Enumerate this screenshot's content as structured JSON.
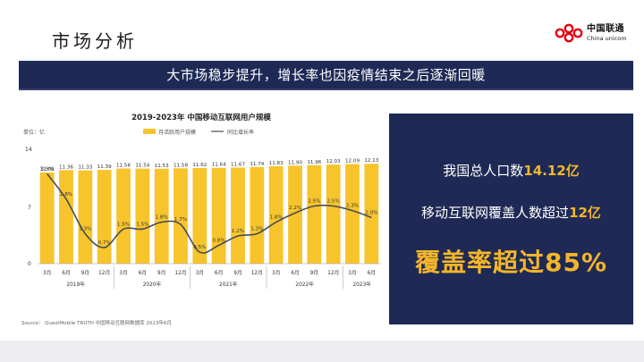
{
  "slide": {
    "title": "市场分析",
    "banner": "大市场稳步提升，增长率也因疫情结束之后逐渐回暖"
  },
  "logo": {
    "cn": "中国联通",
    "en": "China unicom"
  },
  "info": {
    "line1_prefix": "我国总人口数",
    "line1_value": "14.12亿",
    "line2_prefix": "移动互联网覆盖人数超过",
    "line2_value": "12亿",
    "big": "覆盖率超过85%"
  },
  "colors": {
    "navy": "#1e2a55",
    "gold": "#f5b52a",
    "bar": "#f7c42c",
    "line": "#474d57"
  },
  "chart_data": {
    "type": "bar",
    "title": "2019-2023年 中国移动互联网用户规模",
    "unit_label": "单位：亿",
    "legend": [
      "月活跃用户规模",
      "同比增长率"
    ],
    "categories": [
      "3月",
      "6月",
      "9月",
      "12月",
      "3月",
      "6月",
      "9月",
      "12月",
      "3月",
      "6月",
      "9月",
      "12月",
      "3月",
      "6月",
      "9月",
      "12月",
      "3月",
      "6月"
    ],
    "years": [
      {
        "label": "2019年",
        "span": [
          0,
          3
        ]
      },
      {
        "label": "2020年",
        "span": [
          4,
          7
        ]
      },
      {
        "label": "2021年",
        "span": [
          8,
          11
        ]
      },
      {
        "label": "2022年",
        "span": [
          12,
          15
        ]
      },
      {
        "label": "2023年",
        "span": [
          16,
          17
        ]
      }
    ],
    "series": [
      {
        "name": "月活跃用户规模",
        "values": [
          11.08,
          11.36,
          11.33,
          11.39,
          11.56,
          11.54,
          11.53,
          11.58,
          11.62,
          11.64,
          11.67,
          11.74,
          11.83,
          11.9,
          11.96,
          12.03,
          12.09,
          12.13
        ]
      },
      {
        "name": "同比增长率",
        "values": [
          3.9,
          2.8,
          1.3,
          0.7,
          1.5,
          1.5,
          1.8,
          1.7,
          0.5,
          0.8,
          1.2,
          1.3,
          1.8,
          2.2,
          2.5,
          2.5,
          2.3,
          2.0
        ]
      }
    ],
    "bar_labels": [
      "11.08",
      "11.36",
      "11.33",
      "11.39",
      "11.56",
      "11.54",
      "11.53",
      "11.58",
      "11.62",
      "11.64",
      "11.67",
      "11.74",
      "11.83",
      "11.90",
      "11.96",
      "12.03",
      "12.09",
      "12.13"
    ],
    "rate_labels": [
      "3.9%",
      "2.8%",
      "1.3%",
      "0.7%",
      "1.5%",
      "1.5%",
      "1.8%",
      "1.7%",
      "0.5%",
      "0.8%",
      "1.2%",
      "1.3%",
      "1.8%",
      "2.2%",
      "2.5%",
      "2.5%",
      "2.3%",
      "2.0%"
    ],
    "y_ticks": [
      "14",
      "7",
      "0"
    ],
    "ylim": [
      0,
      14
    ],
    "rate_ylim": [
      0,
      5
    ],
    "source": "Source： QuestMobile TRUTH 中国移动互联网数据库 2023年6月"
  }
}
